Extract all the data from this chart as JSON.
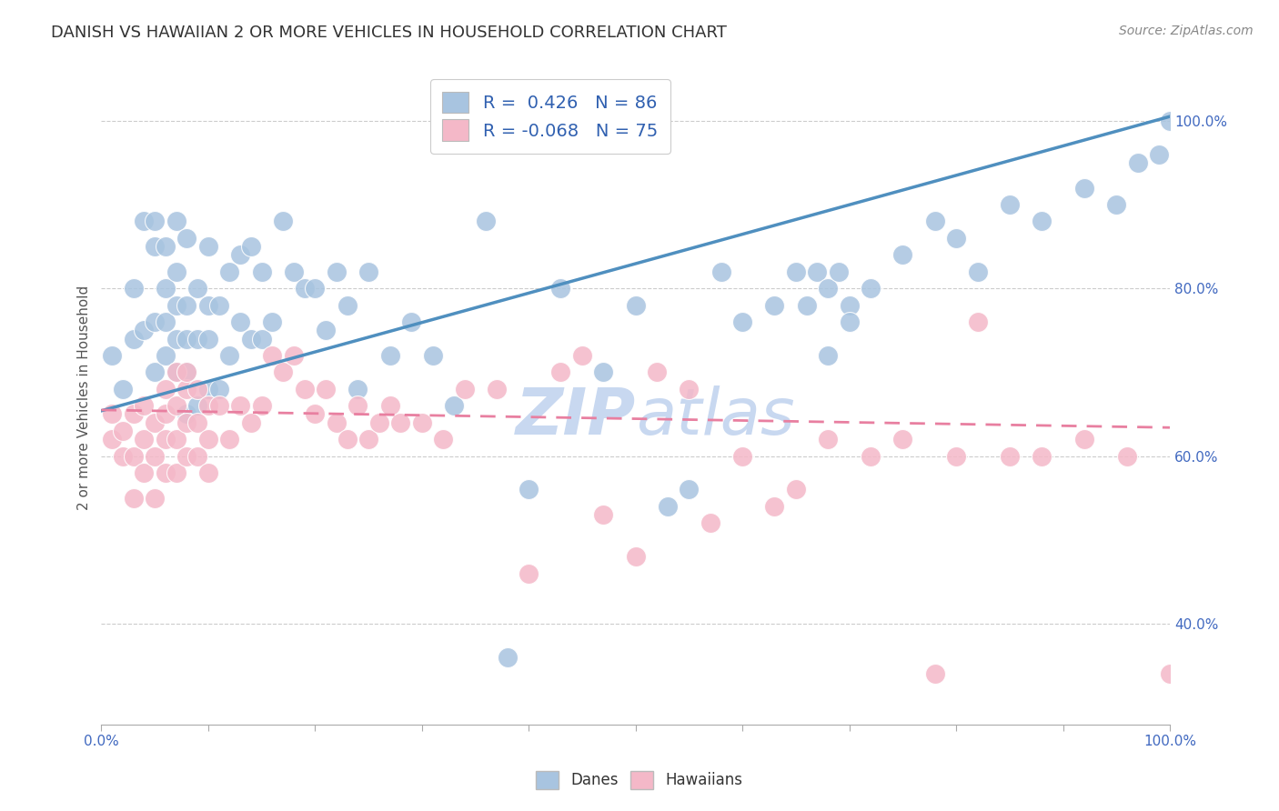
{
  "title": "DANISH VS HAWAIIAN 2 OR MORE VEHICLES IN HOUSEHOLD CORRELATION CHART",
  "source": "Source: ZipAtlas.com",
  "ylabel": "2 or more Vehicles in Household",
  "xlim": [
    0.0,
    1.0
  ],
  "ylim": [
    0.28,
    1.06
  ],
  "ytick_labels": [
    "40.0%",
    "60.0%",
    "80.0%",
    "100.0%"
  ],
  "ytick_values": [
    0.4,
    0.6,
    0.8,
    1.0
  ],
  "danes_R": 0.426,
  "danes_N": 86,
  "hawaiians_R": -0.068,
  "hawaiians_N": 75,
  "danes_color": "#a8c4e0",
  "hawaiians_color": "#f4b8c8",
  "danes_line_color": "#4f8fbf",
  "hawaiians_line_color": "#e87fa0",
  "legend_text_color": "#3060b0",
  "background_color": "#ffffff",
  "grid_color": "#cccccc",
  "title_color": "#333333",
  "watermark_color": "#c8d8f0",
  "danes_x": [
    0.01,
    0.02,
    0.03,
    0.03,
    0.04,
    0.04,
    0.05,
    0.05,
    0.05,
    0.05,
    0.06,
    0.06,
    0.06,
    0.06,
    0.07,
    0.07,
    0.07,
    0.07,
    0.07,
    0.08,
    0.08,
    0.08,
    0.08,
    0.08,
    0.09,
    0.09,
    0.09,
    0.1,
    0.1,
    0.1,
    0.1,
    0.11,
    0.11,
    0.12,
    0.12,
    0.13,
    0.13,
    0.14,
    0.14,
    0.15,
    0.15,
    0.16,
    0.17,
    0.18,
    0.19,
    0.2,
    0.21,
    0.22,
    0.23,
    0.24,
    0.25,
    0.27,
    0.29,
    0.31,
    0.33,
    0.36,
    0.38,
    0.4,
    0.43,
    0.47,
    0.5,
    0.53,
    0.55,
    0.58,
    0.6,
    0.65,
    0.68,
    0.7,
    0.72,
    0.75,
    0.78,
    0.8,
    0.82,
    0.85,
    0.88,
    0.92,
    0.95,
    0.97,
    0.99,
    1.0,
    0.63,
    0.66,
    0.67,
    0.68,
    0.69,
    0.7
  ],
  "danes_y": [
    0.72,
    0.68,
    0.74,
    0.8,
    0.75,
    0.88,
    0.7,
    0.76,
    0.85,
    0.88,
    0.72,
    0.76,
    0.8,
    0.85,
    0.7,
    0.74,
    0.78,
    0.82,
    0.88,
    0.65,
    0.7,
    0.74,
    0.78,
    0.86,
    0.66,
    0.74,
    0.8,
    0.68,
    0.74,
    0.78,
    0.85,
    0.68,
    0.78,
    0.72,
    0.82,
    0.76,
    0.84,
    0.74,
    0.85,
    0.74,
    0.82,
    0.76,
    0.88,
    0.82,
    0.8,
    0.8,
    0.75,
    0.82,
    0.78,
    0.68,
    0.82,
    0.72,
    0.76,
    0.72,
    0.66,
    0.88,
    0.36,
    0.56,
    0.8,
    0.7,
    0.78,
    0.54,
    0.56,
    0.82,
    0.76,
    0.82,
    0.72,
    0.78,
    0.8,
    0.84,
    0.88,
    0.86,
    0.82,
    0.9,
    0.88,
    0.92,
    0.9,
    0.95,
    0.96,
    1.0,
    0.78,
    0.78,
    0.82,
    0.8,
    0.82,
    0.76
  ],
  "hawaiians_x": [
    0.01,
    0.01,
    0.02,
    0.02,
    0.03,
    0.03,
    0.03,
    0.04,
    0.04,
    0.04,
    0.05,
    0.05,
    0.05,
    0.06,
    0.06,
    0.06,
    0.06,
    0.07,
    0.07,
    0.07,
    0.07,
    0.08,
    0.08,
    0.08,
    0.08,
    0.09,
    0.09,
    0.09,
    0.1,
    0.1,
    0.1,
    0.11,
    0.12,
    0.13,
    0.14,
    0.15,
    0.16,
    0.17,
    0.18,
    0.19,
    0.2,
    0.21,
    0.22,
    0.23,
    0.24,
    0.25,
    0.26,
    0.27,
    0.28,
    0.3,
    0.32,
    0.34,
    0.37,
    0.4,
    0.43,
    0.45,
    0.47,
    0.5,
    0.52,
    0.55,
    0.57,
    0.6,
    0.63,
    0.65,
    0.68,
    0.72,
    0.75,
    0.78,
    0.8,
    0.82,
    0.85,
    0.88,
    0.92,
    0.96,
    1.0
  ],
  "hawaiians_y": [
    0.62,
    0.65,
    0.6,
    0.63,
    0.55,
    0.6,
    0.65,
    0.58,
    0.62,
    0.66,
    0.55,
    0.6,
    0.64,
    0.58,
    0.62,
    0.65,
    0.68,
    0.58,
    0.62,
    0.66,
    0.7,
    0.6,
    0.64,
    0.68,
    0.7,
    0.6,
    0.64,
    0.68,
    0.58,
    0.62,
    0.66,
    0.66,
    0.62,
    0.66,
    0.64,
    0.66,
    0.72,
    0.7,
    0.72,
    0.68,
    0.65,
    0.68,
    0.64,
    0.62,
    0.66,
    0.62,
    0.64,
    0.66,
    0.64,
    0.64,
    0.62,
    0.68,
    0.68,
    0.46,
    0.7,
    0.72,
    0.53,
    0.48,
    0.7,
    0.68,
    0.52,
    0.6,
    0.54,
    0.56,
    0.62,
    0.6,
    0.62,
    0.34,
    0.6,
    0.76,
    0.6,
    0.6,
    0.62,
    0.6,
    0.34
  ],
  "danes_line_x0": 0.0,
  "danes_line_y0": 0.654,
  "danes_line_x1": 1.0,
  "danes_line_y1": 1.005,
  "haw_line_x0": 0.0,
  "haw_line_y0": 0.655,
  "haw_line_x1": 1.0,
  "haw_line_y1": 0.634
}
